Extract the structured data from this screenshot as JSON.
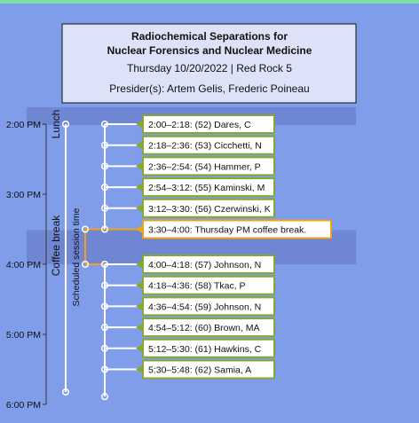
{
  "header": {
    "title_line1": "Radiochemical Separations for",
    "title_line2": "Nuclear Forensics and Nuclear Medicine",
    "date_room": "Thursday 10/20/2022 | Red Rock 5",
    "presiders": "Presider(s): Artem Gelis, Frederic Poineau"
  },
  "colors": {
    "background": "#7f9de8",
    "top_strip": "#7ee0a8",
    "header_fill": "#dde2f8",
    "break_band": "#6f87d2",
    "talk_border": "#86a92c",
    "coffee_border": "#f0a020",
    "axis": "#ffffff"
  },
  "axis": {
    "ticks": [
      "2:00 PM",
      "3:00 PM",
      "4:00 PM",
      "5:00 PM",
      "6:00 PM"
    ],
    "range_hours": [
      14,
      18
    ]
  },
  "side_labels": {
    "lunch": "Lunch",
    "coffee_break": "Coffee break",
    "scheduled": "Scheduled session time"
  },
  "bands": [
    {
      "start": 14.0,
      "end": 14.0
    },
    {
      "start": 15.5,
      "end": 16.0
    }
  ],
  "events": [
    {
      "label": "2:00–2:18: (52) Dares, C",
      "start": 14.0,
      "type": "talk"
    },
    {
      "label": "2:18–2:36: (53) Cicchetti, N",
      "start": 14.3,
      "type": "talk"
    },
    {
      "label": "2:36–2:54: (54) Hammer, P",
      "start": 14.6,
      "type": "talk"
    },
    {
      "label": "2:54–3:12: (55) Kaminski, M",
      "start": 14.9,
      "type": "talk"
    },
    {
      "label": "3:12–3:30: (56) Czerwinski, K",
      "start": 15.2,
      "type": "talk"
    },
    {
      "label": "3:30–4:00: Thursday PM coffee break.",
      "start": 15.5,
      "type": "coffee"
    },
    {
      "label": "4:00–4:18: (57) Johnson, N",
      "start": 16.0,
      "type": "talk"
    },
    {
      "label": "4:18–4:36: (58) Tkac, P",
      "start": 16.3,
      "type": "talk"
    },
    {
      "label": "4:36–4:54: (59) Johnson, N",
      "start": 16.6,
      "type": "talk"
    },
    {
      "label": "4:54–5:12: (60) Brown, MA",
      "start": 16.9,
      "type": "talk"
    },
    {
      "label": "5:12–5:30: (61) Hawkins, C",
      "start": 17.2,
      "type": "talk"
    },
    {
      "label": "5:30–5:48: (62) Samia, A",
      "start": 17.5,
      "type": "talk"
    }
  ]
}
